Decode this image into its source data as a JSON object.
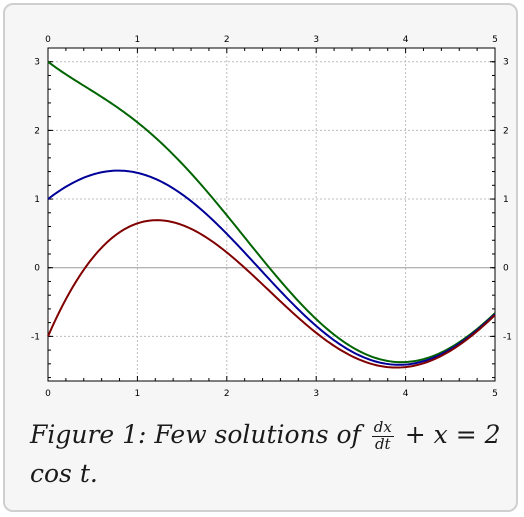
{
  "chart_data": {
    "type": "line",
    "title": "",
    "xlabel": "",
    "ylabel": "",
    "xlim": [
      0,
      5
    ],
    "ylim": [
      -1.65,
      3.2
    ],
    "x_ticks": [
      "0",
      "1",
      "2",
      "3",
      "4",
      "5"
    ],
    "y_ticks": [
      "3",
      "2",
      "1",
      "0",
      "-1"
    ],
    "x_tick_values": [
      0,
      1,
      2,
      3,
      4,
      5
    ],
    "y_tick_values": [
      3,
      2,
      1,
      0,
      -1
    ],
    "grid": true,
    "legend": "none",
    "series": [
      {
        "color": "#006400",
        "x0": 3,
        "points": [
          [
            0,
            3
          ],
          [
            0.5,
            2.63
          ],
          [
            1,
            2.14
          ],
          [
            1.5,
            1.43
          ],
          [
            2,
            0.68
          ],
          [
            2.5,
            0.02
          ],
          [
            3,
            -0.64
          ],
          [
            3.5,
            -1.13
          ],
          [
            3.9,
            -1.33
          ],
          [
            4,
            -1.35
          ],
          [
            4.5,
            -1.15
          ],
          [
            5,
            -0.68
          ]
        ]
      },
      {
        "color": "#000099",
        "x0": 1,
        "points": [
          [
            0,
            1
          ],
          [
            0.5,
            1.37
          ],
          [
            0.8,
            1.43
          ],
          [
            1,
            1.4
          ],
          [
            1.5,
            1.24
          ],
          [
            2,
            0.6
          ],
          [
            2.5,
            -0.02
          ],
          [
            3,
            -0.71
          ],
          [
            3.5,
            -1.16
          ],
          [
            3.9,
            -1.38
          ],
          [
            4,
            -1.39
          ],
          [
            4.5,
            -1.17
          ],
          [
            5,
            -0.69
          ]
        ]
      },
      {
        "color": "#800000",
        "x0": -1,
        "points": [
          [
            0,
            -1
          ],
          [
            0.5,
            0.15
          ],
          [
            1,
            0.63
          ],
          [
            1.2,
            0.7
          ],
          [
            1.5,
            0.61
          ],
          [
            2,
            0.28
          ],
          [
            2.5,
            -0.24
          ],
          [
            3,
            -0.81
          ],
          [
            3.5,
            -1.26
          ],
          [
            3.9,
            -1.43
          ],
          [
            4,
            -1.41
          ],
          [
            4.5,
            -1.2
          ],
          [
            5,
            -0.69
          ]
        ]
      }
    ]
  },
  "caption": {
    "prefix": "Figure 1:  Few solutions of",
    "frac_num": "dx",
    "frac_den": "dt",
    "middle": "+ x =",
    "suffix": "2 cos t."
  }
}
